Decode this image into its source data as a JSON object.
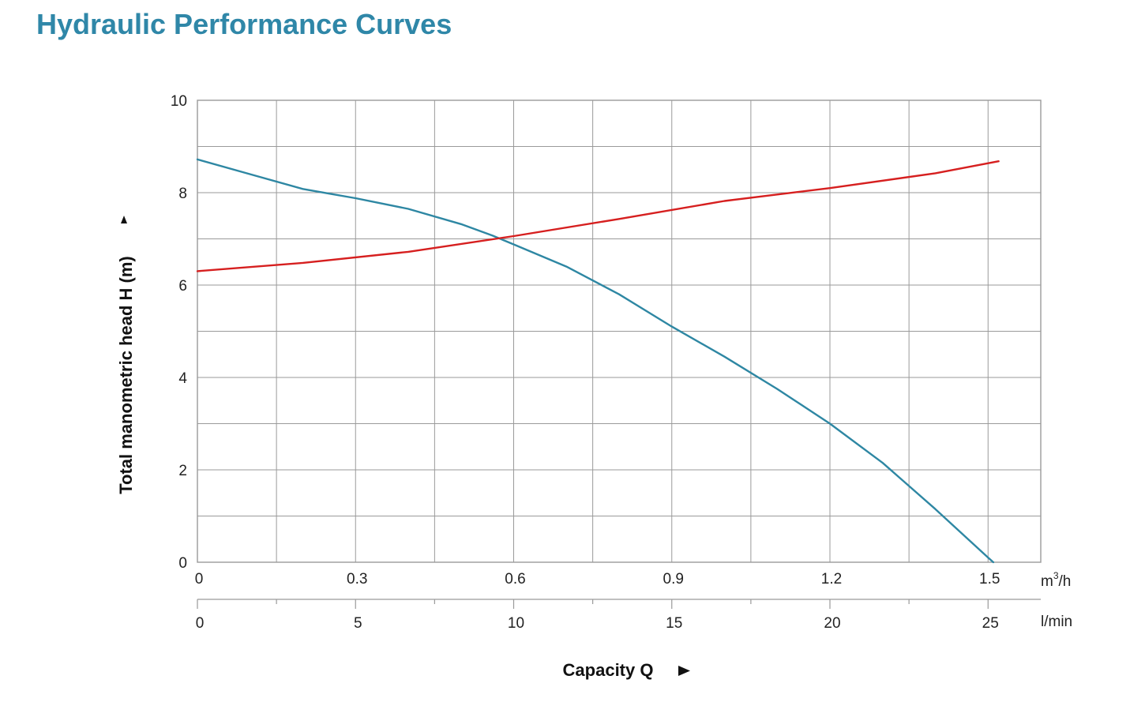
{
  "page": {
    "title": "Hydraulic Performance Curves"
  },
  "colors": {
    "title": "#2f87a8",
    "head_curve": "#2e87a3",
    "second_curve": "#d61f1f",
    "grid": "#9a9a9a"
  },
  "chart_data": {
    "type": "line",
    "title": "",
    "xlabel": "Capacity Q",
    "ylabel": "Total manometric head H (m)",
    "xlim_m3h": [
      0,
      1.6
    ],
    "ylim": [
      0,
      10
    ],
    "grid": true,
    "y_ticks": [
      "0",
      "2",
      "4",
      "6",
      "8",
      "10"
    ],
    "x_ticks_m3h": [
      "0",
      "0.3",
      "0.6",
      "0.9",
      "1.2",
      "1.5"
    ],
    "x_unit_m3h": "m",
    "x_unit_m3h_sup": "3",
    "x_unit_m3h_suffix": "/h",
    "x_ticks_lmin": [
      "0",
      "5",
      "10",
      "15",
      "20",
      "25"
    ],
    "x_unit_lmin": "l/min",
    "series": [
      {
        "x": [
          0,
          0.1,
          0.2,
          0.25,
          0.3,
          0.4,
          0.5,
          0.56,
          0.6,
          0.7,
          0.8,
          0.9,
          1.0,
          1.1,
          1.2,
          1.3,
          1.4,
          1.5,
          1.51
        ],
        "y": [
          8.72,
          8.4,
          8.08,
          7.98,
          7.88,
          7.65,
          7.32,
          7.07,
          6.88,
          6.4,
          5.8,
          5.1,
          4.45,
          3.75,
          3.0,
          2.15,
          1.15,
          0.1,
          0
        ]
      },
      {
        "x": [
          0,
          0.2,
          0.4,
          0.6,
          0.8,
          1.0,
          1.2,
          1.4,
          1.52
        ],
        "y": [
          6.3,
          6.48,
          6.72,
          7.06,
          7.43,
          7.82,
          8.1,
          8.42,
          8.68
        ]
      }
    ]
  }
}
